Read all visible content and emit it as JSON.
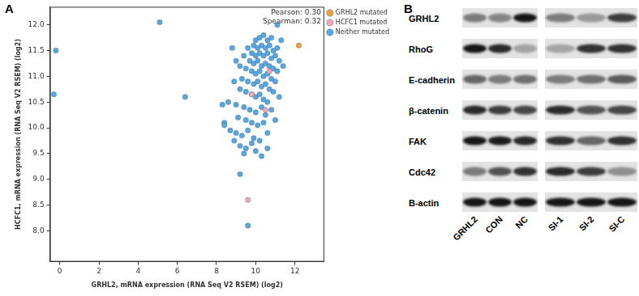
{
  "chart_data": {
    "type": "scatter",
    "panel_label": "A",
    "x_label": "GRHL2, mRNA expression (RNA Seq V2 RSEM) (log2)",
    "y_label": "HCFC1, mRNA expression (RNA Seq V2 RSEM) (log2)",
    "annotations": [
      "Pearson: 0.30",
      "Spearman: 0.32"
    ],
    "xlim": [
      -0.5,
      13.5
    ],
    "xticks": [
      0,
      2,
      4,
      6,
      8,
      10,
      12
    ],
    "ylim": [
      7.4,
      12.35
    ],
    "yticks": [
      {
        "value": 8,
        "label": "8.0"
      },
      8.5,
      {
        "value": 9,
        "label": "9.0"
      },
      9.5,
      {
        "value": 10,
        "label": "10.0"
      },
      10.5,
      {
        "value": 11,
        "label": "11.0"
      },
      11.5,
      {
        "value": 12,
        "label": "12.0"
      }
    ],
    "grid": false,
    "legend": "top-right",
    "marker": "circle",
    "series": [
      {
        "name": "GRHL2 mutated",
        "color": "#e9a13b",
        "values": [
          [
            12.2,
            11.6
          ]
        ]
      },
      {
        "name": "HCFC1 mutated",
        "color": "#f2a7b8",
        "values": [
          [
            9.6,
            8.6
          ],
          [
            9.8,
            10.65
          ],
          [
            10.7,
            11.1
          ],
          [
            10.5,
            10.35
          ]
        ]
      },
      {
        "name": "Neither mutated",
        "color": "#5aa7e0",
        "values": [
          [
            10.0,
            11.7
          ],
          [
            10.2,
            11.75
          ],
          [
            10.4,
            11.8
          ],
          [
            10.6,
            11.7
          ],
          [
            10.8,
            11.75
          ],
          [
            11.1,
            12.0
          ],
          [
            9.9,
            11.6
          ],
          [
            10.1,
            11.55
          ],
          [
            10.3,
            11.6
          ],
          [
            10.5,
            11.55
          ],
          [
            10.7,
            11.6
          ],
          [
            10.9,
            11.5
          ],
          [
            11.1,
            11.55
          ],
          [
            9.6,
            11.55
          ],
          [
            9.8,
            11.45
          ],
          [
            10.0,
            11.4
          ],
          [
            10.2,
            11.45
          ],
          [
            10.4,
            11.4
          ],
          [
            10.6,
            11.45
          ],
          [
            10.8,
            11.35
          ],
          [
            11.0,
            11.4
          ],
          [
            11.2,
            11.3
          ],
          [
            9.4,
            11.4
          ],
          [
            9.7,
            11.3
          ],
          [
            9.9,
            11.25
          ],
          [
            10.1,
            11.3
          ],
          [
            10.3,
            11.2
          ],
          [
            10.5,
            11.25
          ],
          [
            10.7,
            11.2
          ],
          [
            10.9,
            11.15
          ],
          [
            11.1,
            11.1
          ],
          [
            11.4,
            11.2
          ],
          [
            9.2,
            11.2
          ],
          [
            9.5,
            11.15
          ],
          [
            9.8,
            11.1
          ],
          [
            10.0,
            11.05
          ],
          [
            10.2,
            11.1
          ],
          [
            10.4,
            11.0
          ],
          [
            10.6,
            11.05
          ],
          [
            10.8,
            10.95
          ],
          [
            11.0,
            10.9
          ],
          [
            9.0,
            11.3
          ],
          [
            8.8,
            11.55
          ],
          [
            9.3,
            10.95
          ],
          [
            9.6,
            10.9
          ],
          [
            9.9,
            10.85
          ],
          [
            10.1,
            10.9
          ],
          [
            10.3,
            10.8
          ],
          [
            10.5,
            10.85
          ],
          [
            10.7,
            10.75
          ],
          [
            10.9,
            10.7
          ],
          [
            8.9,
            10.9
          ],
          [
            9.2,
            10.75
          ],
          [
            9.5,
            10.7
          ],
          [
            9.8,
            10.65
          ],
          [
            10.0,
            10.6
          ],
          [
            10.2,
            10.65
          ],
          [
            10.4,
            10.55
          ],
          [
            10.6,
            10.5
          ],
          [
            11.2,
            10.6
          ],
          [
            8.6,
            10.5
          ],
          [
            9.0,
            10.45
          ],
          [
            9.4,
            10.4
          ],
          [
            9.7,
            10.35
          ],
          [
            10.0,
            10.3
          ],
          [
            10.3,
            10.4
          ],
          [
            10.5,
            10.25
          ],
          [
            10.8,
            10.35
          ],
          [
            9.1,
            10.2
          ],
          [
            9.5,
            10.15
          ],
          [
            9.8,
            10.1
          ],
          [
            10.1,
            10.05
          ],
          [
            10.4,
            10.1
          ],
          [
            8.4,
            10.1
          ],
          [
            8.4,
            10.05
          ],
          [
            8.7,
            9.95
          ],
          [
            9.0,
            9.9
          ],
          [
            9.3,
            9.85
          ],
          [
            9.6,
            9.95
          ],
          [
            9.9,
            9.8
          ],
          [
            10.2,
            9.75
          ],
          [
            10.6,
            9.9
          ],
          [
            11.0,
            10.15
          ],
          [
            8.9,
            9.75
          ],
          [
            9.2,
            9.65
          ],
          [
            9.5,
            9.6
          ],
          [
            9.8,
            9.7
          ],
          [
            10.0,
            9.55
          ],
          [
            9.4,
            9.5
          ],
          [
            10.3,
            9.45
          ],
          [
            10.6,
            9.6
          ],
          [
            9.2,
            9.1
          ],
          [
            9.6,
            8.1
          ],
          [
            -0.2,
            11.5
          ],
          [
            -0.3,
            10.65
          ],
          [
            5.1,
            12.05
          ],
          [
            6.4,
            10.6
          ],
          [
            8.3,
            10.45
          ],
          [
            11.3,
            11.7
          ]
        ]
      }
    ]
  },
  "blot": {
    "panel_label": "B",
    "groups": [
      {
        "lanes": [
          "GRHL2",
          "CON",
          "NC"
        ]
      },
      {
        "lanes": [
          "SI-1",
          "SI-2",
          "SI-C"
        ]
      }
    ],
    "rows": [
      {
        "label": "GRHL2",
        "intensity": [
          [
            0.5,
            0.45,
            1.0
          ],
          [
            0.5,
            0.35,
            0.8
          ]
        ]
      },
      {
        "label": "RhoG",
        "intensity": [
          [
            1.0,
            0.9,
            0.3
          ],
          [
            0.3,
            0.85,
            0.85
          ]
        ]
      },
      {
        "label": "E-cadherin",
        "intensity": [
          [
            0.6,
            0.5,
            0.55
          ],
          [
            0.5,
            0.55,
            0.65
          ]
        ]
      },
      {
        "label": "β-catenin",
        "intensity": [
          [
            0.9,
            0.8,
            0.75
          ],
          [
            0.9,
            0.7,
            0.75
          ]
        ]
      },
      {
        "label": "FAK",
        "intensity": [
          [
            1.0,
            0.95,
            0.9
          ],
          [
            0.85,
            0.6,
            0.85
          ]
        ]
      },
      {
        "label": "Cdc42",
        "intensity": [
          [
            0.5,
            0.7,
            0.85
          ],
          [
            0.9,
            0.8,
            0.4
          ]
        ]
      },
      {
        "label": "B-actin",
        "intensity": [
          [
            1.0,
            1.0,
            1.0
          ],
          [
            1.0,
            1.0,
            1.0
          ]
        ]
      }
    ]
  }
}
